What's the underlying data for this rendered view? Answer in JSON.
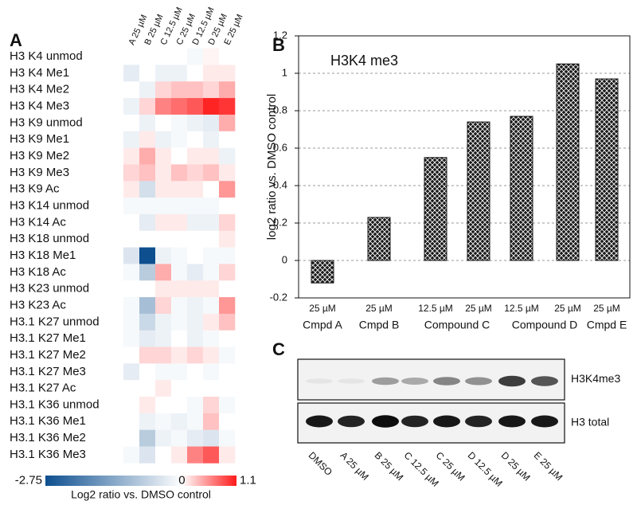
{
  "chart_data": [
    {
      "type": "heatmap",
      "panel": "A",
      "rows": [
        "H3 K4 unmod",
        "H3 K4 Me1",
        "H3 K4 Me2",
        "H3 K4 Me3",
        "H3 K9 unmod",
        "H3 K9 Me1",
        "H3 K9 Me2",
        "H3 K9 Me3",
        "H3 K9 Ac",
        "H3 K14 unmod",
        "H3 K14 Ac",
        "H3 K18 unmod",
        "H3 K18 Me1",
        "H3 K18 Ac",
        "H3 K23 unmod",
        "H3 K23 Ac",
        "H3.1 K27 unmod",
        "H3.1 K27 Me1",
        "H3.1 K27 Me2",
        "H3.1 K27 Me3",
        "H3.1 K27 Ac",
        "H3.1 K36 unmod",
        "H3.1 K36 Me1",
        "H3.1 K36 Me2",
        "H3.1 K36 Me3"
      ],
      "columns": [
        "A 25 µM",
        "B 25 µM",
        "C 12.5 µM",
        "C 25 µM",
        "D 12.5 µM",
        "D 25 µM",
        "E 25 µM"
      ],
      "values": [
        [
          0,
          0,
          0,
          0,
          -0.1,
          0.05,
          0
        ],
        [
          -0.3,
          0,
          -0.2,
          -0.2,
          0,
          0.1,
          0.1
        ],
        [
          0,
          -0.2,
          0.2,
          0.3,
          0.3,
          0.2,
          0.4
        ],
        [
          -0.2,
          0.2,
          0.6,
          0.7,
          0.8,
          1.05,
          0.97
        ],
        [
          0,
          -0.2,
          0,
          -0.1,
          -0.2,
          -0.3,
          0.4
        ],
        [
          -0.2,
          0.1,
          -0.2,
          -0.1,
          0,
          -0.2,
          0
        ],
        [
          0.1,
          0.4,
          0.1,
          0,
          0.1,
          0.1,
          -0.2
        ],
        [
          0.2,
          0.3,
          0.1,
          0.3,
          0.2,
          0.3,
          0.1
        ],
        [
          0.1,
          -0.5,
          0.1,
          0.1,
          0.1,
          0,
          0.5
        ],
        [
          -0.1,
          -0.1,
          -0.1,
          -0.1,
          -0.1,
          -0.1,
          0
        ],
        [
          0,
          -0.3,
          0.1,
          0.1,
          -0.2,
          -0.2,
          0.2
        ],
        [
          0,
          0,
          0,
          0,
          0,
          0,
          0.1
        ],
        [
          -0.4,
          -2.75,
          -0.2,
          -0.1,
          0,
          -0.1,
          -0.1
        ],
        [
          -0.1,
          -0.8,
          0.4,
          -0.1,
          -0.3,
          -0.1,
          0.2
        ],
        [
          0,
          0,
          0.1,
          0.1,
          0.1,
          0.1,
          0
        ],
        [
          -0.1,
          -1.0,
          0.2,
          -0.1,
          -0.2,
          -0.1,
          0.5
        ],
        [
          -0.1,
          -0.6,
          -0.2,
          -0.1,
          -0.2,
          0.1,
          0.3
        ],
        [
          -0.1,
          -0.3,
          -0.2,
          0,
          -0.2,
          -0.1,
          0
        ],
        [
          0,
          0.2,
          0.2,
          0.1,
          0.2,
          0.1,
          -0.1
        ],
        [
          -0.3,
          0,
          -0.1,
          -0.1,
          0,
          -0.1,
          0
        ],
        [
          0,
          0,
          0.1,
          0,
          0,
          0,
          0
        ],
        [
          0,
          0.1,
          0,
          0,
          -0.1,
          0.2,
          -0.1
        ],
        [
          0,
          -0.2,
          -0.1,
          -0.2,
          -0.1,
          0.3,
          0
        ],
        [
          0,
          -0.8,
          -0.2,
          -0.1,
          -0.3,
          -0.4,
          -0.1
        ],
        [
          -0.1,
          -0.4,
          0,
          0.1,
          0.6,
          0.8,
          0.1
        ]
      ],
      "zlim": [
        -2.75,
        1.1
      ],
      "colorbar_ticks": [
        -2.75,
        0,
        1.1
      ],
      "colors": [
        "#0d4f8f",
        "#ffffff",
        "#ff1a1a"
      ],
      "colorbar_label": "Log2 ratio vs. DMSO control"
    },
    {
      "type": "bar",
      "panel": "B",
      "annotation": "H3K4 me3",
      "y_label": "log2 ratio vs. DMSO control",
      "categories": [
        {
          "group": "Cmpd A",
          "labels": [
            "25 µM"
          ]
        },
        {
          "group": "Cmpd B",
          "labels": [
            "25 µM"
          ]
        },
        {
          "group": "Compound C",
          "labels": [
            "12.5 µM",
            "25 µM"
          ]
        },
        {
          "group": "Compound D",
          "labels": [
            "12.5 µM",
            "25 µM"
          ]
        },
        {
          "group": "Cmpd E",
          "labels": [
            "25 µM"
          ]
        }
      ],
      "values": [
        [
          -0.12
        ],
        [
          0.23
        ],
        [
          0.55,
          0.74
        ],
        [
          0.77,
          1.05
        ],
        [
          0.97
        ]
      ],
      "color": "#1a1a1a",
      "ylim": [
        -0.2,
        1.2
      ],
      "yticks": [
        -0.2,
        0,
        0.2,
        0.4,
        0.6,
        0.8,
        1,
        1.2
      ],
      "grid": true
    },
    {
      "type": "blot",
      "panel": "C",
      "lanes": [
        "DMSO",
        "A 25 µM",
        "B 25 µM",
        "C 12.5 µM",
        "C 25 µM",
        "D 12.5 µM",
        "D 25 µM",
        "E 25 µM"
      ],
      "rows": [
        {
          "label": "H3K4me3",
          "intensity": [
            0.05,
            0.05,
            0.35,
            0.3,
            0.45,
            0.4,
            0.75,
            0.65
          ]
        },
        {
          "label": "H3 total",
          "intensity": [
            0.9,
            0.85,
            0.95,
            0.85,
            0.9,
            0.85,
            0.9,
            0.9
          ]
        }
      ]
    }
  ]
}
